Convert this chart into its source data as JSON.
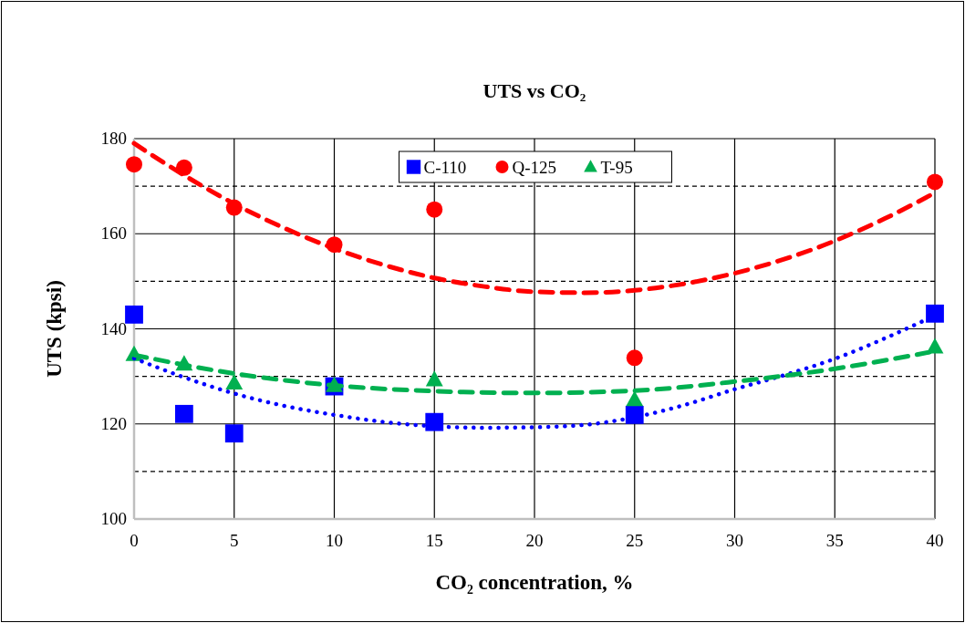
{
  "chart_data": {
    "type": "scatter",
    "title": "UTS vs CO₂",
    "xlabel": "CO₂ concentration, %",
    "ylabel": "UTS (kpsi)",
    "xlim": [
      0,
      40
    ],
    "xticks": [
      0,
      5,
      10,
      15,
      20,
      25,
      30,
      35,
      40
    ],
    "ylim": [
      100,
      180
    ],
    "yticks": [
      100,
      {
        "value": 110,
        "label": null
      },
      120,
      {
        "value": 130,
        "label": null
      },
      140,
      {
        "value": 150,
        "label": null
      },
      160,
      {
        "value": 170,
        "label": null
      },
      180
    ],
    "grid": true,
    "legend": "top",
    "series": [
      {
        "name": "C-110",
        "color": "#0000ff",
        "marker": "square",
        "x": [
          0,
          2.5,
          5,
          10,
          15,
          25,
          40
        ],
        "values": [
          143.0,
          122.1,
          118.0,
          127.9,
          120.4,
          121.9,
          143.2
        ]
      },
      {
        "name": "Q-125",
        "color": "#ff0000",
        "marker": "circle",
        "x": [
          0,
          2.5,
          5,
          10,
          15,
          25,
          40
        ],
        "values": [
          174.6,
          173.9,
          165.5,
          157.7,
          165.1,
          133.9,
          170.9
        ]
      },
      {
        "name": "T-95",
        "color": "#00b050",
        "marker": "triangle",
        "x": [
          0,
          2.5,
          5,
          10,
          15,
          25,
          40
        ],
        "values": [
          134.6,
          132.6,
          128.6,
          128.1,
          129.3,
          125.1,
          136.2
        ]
      },
      {
        "type": "line",
        "color": "#ff0000",
        "line_style": "dashed",
        "x": [
          0,
          2.5,
          5,
          7.5,
          10,
          12.5,
          15,
          17.5,
          20,
          22.5,
          25,
          27.5,
          30,
          32.5,
          35,
          37.5,
          40
        ],
        "values": [
          179.0,
          172.3,
          166.3,
          161.2,
          156.9,
          153.4,
          150.7,
          148.9,
          147.8,
          147.6,
          148.1,
          149.5,
          151.7,
          154.7,
          158.5,
          163.2,
          168.6
        ]
      },
      {
        "type": "line",
        "color": "#0000ff",
        "line_style": "dotted",
        "x": [
          0,
          2.5,
          5,
          7.5,
          10,
          12.5,
          15,
          17.5,
          20,
          22.5,
          25,
          27.5,
          30,
          32.5,
          35,
          37.5,
          40
        ],
        "values": [
          133.8,
          129.8,
          126.4,
          123.8,
          121.9,
          120.4,
          119.5,
          119.2,
          119.3,
          119.8,
          121.4,
          124.0,
          127.3,
          130.3,
          133.7,
          138.0,
          142.8
        ]
      },
      {
        "type": "line",
        "color": "#00b050",
        "line_style": "dashed",
        "x": [
          0,
          5,
          10,
          15,
          20,
          25,
          30,
          35,
          40
        ],
        "values": [
          134.5,
          130.6,
          128.1,
          126.9,
          126.5,
          127.0,
          128.9,
          131.6,
          135.3
        ]
      }
    ]
  }
}
